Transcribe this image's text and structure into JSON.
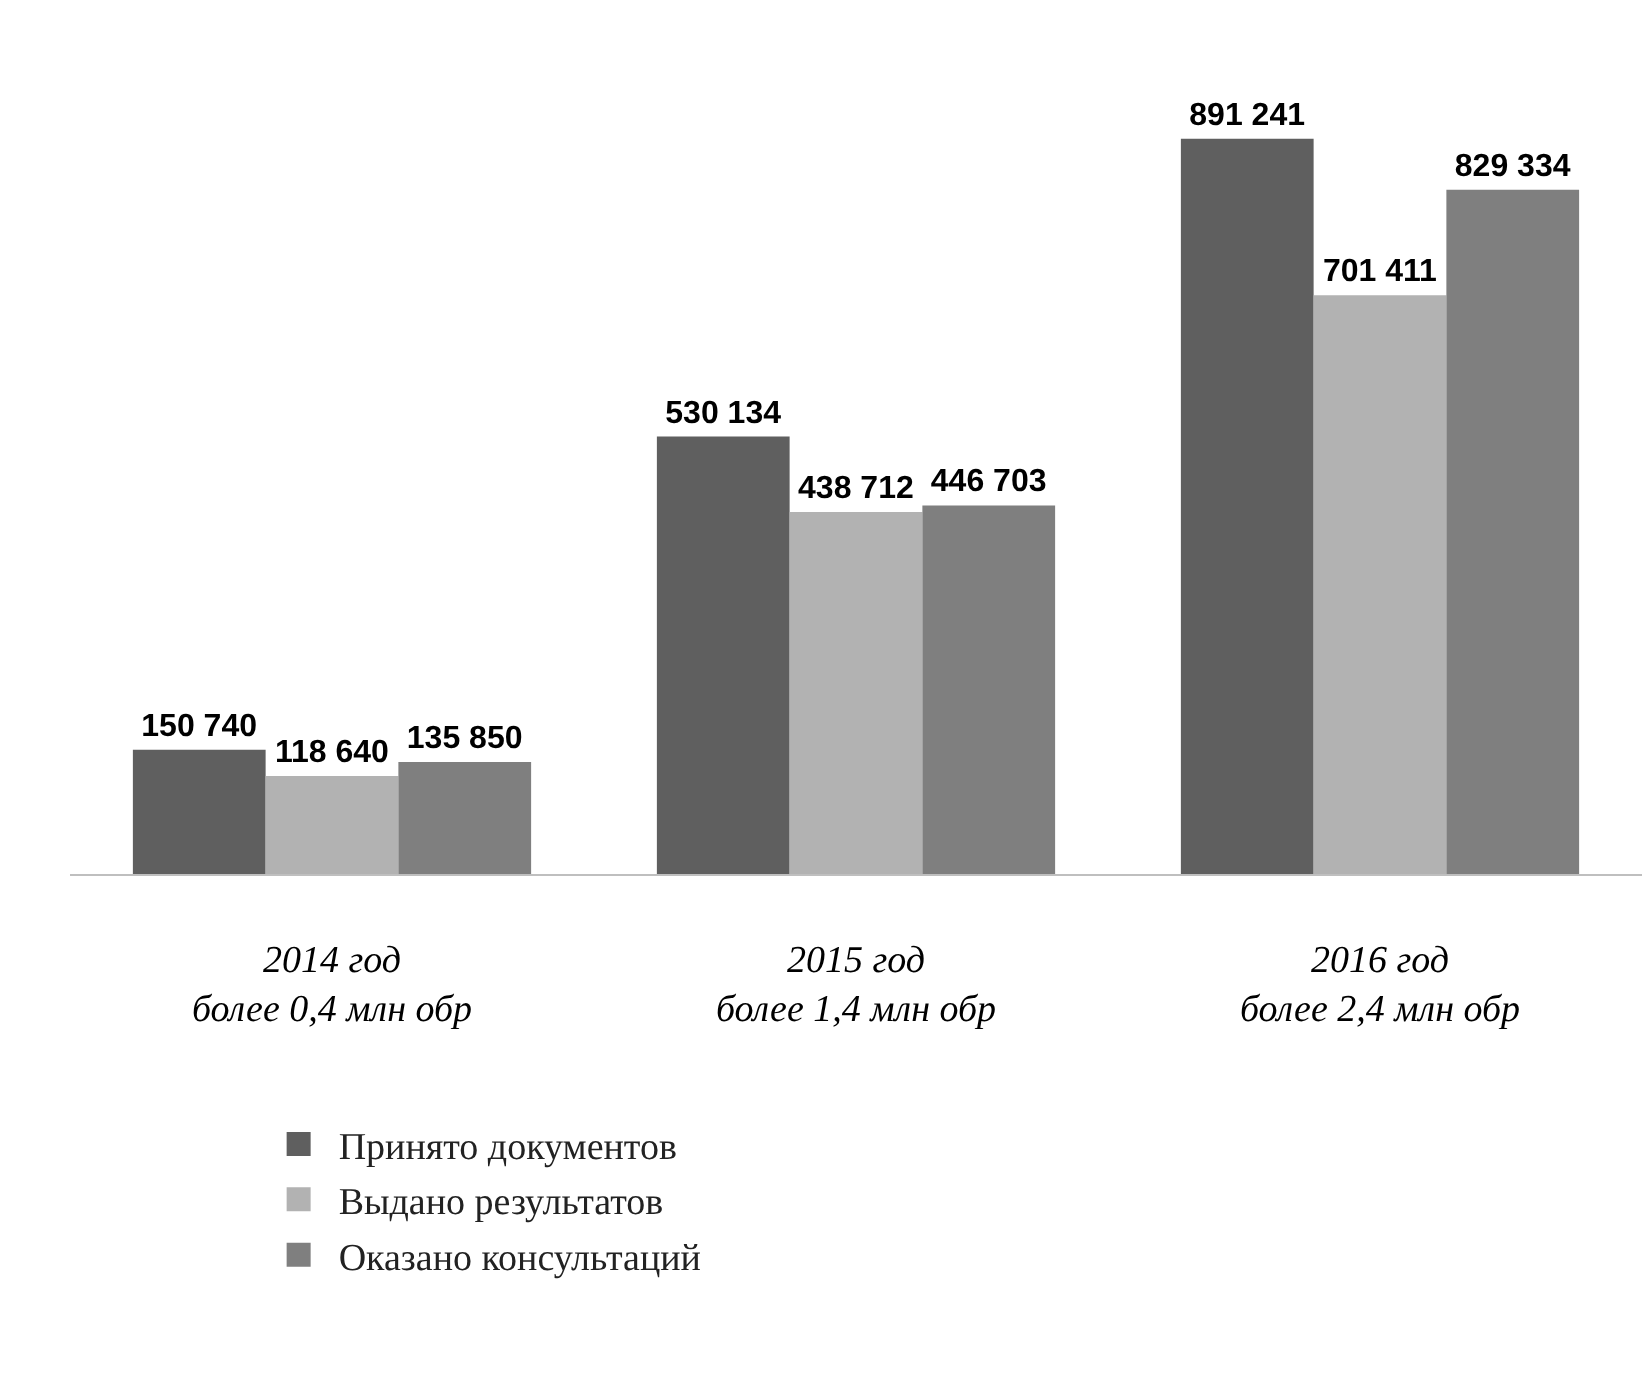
{
  "chart_data": {
    "type": "bar",
    "data_labels": true,
    "categories": [
      "2014 год\nболее 0,4 млн обр",
      "2015 год\nболее 1,4 млн обр",
      "2016 год\nболее 2,4 млн обр"
    ],
    "series": [
      {
        "name": "Принято документов",
        "color": "#5f5f5f",
        "values": [
          150740,
          530134,
          891241
        ]
      },
      {
        "name": "Выдано результатов",
        "color": "#b2b2b2",
        "values": [
          118640,
          438712,
          701411
        ]
      },
      {
        "name": "Оказано консультаций",
        "color": "#7f7f7f",
        "values": [
          135850,
          446703,
          829334
        ]
      }
    ],
    "legend": "bottom"
  }
}
